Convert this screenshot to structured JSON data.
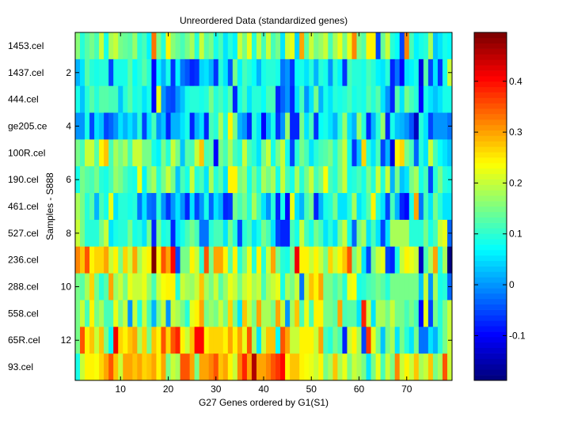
{
  "chart_data": {
    "type": "heatmap",
    "title": "Unreordered Data (standardized genes)",
    "xlabel": "G27 Genes ordered by G1(S1)",
    "ylabel": "Samples - S888",
    "row_labels": [
      "1453.cel",
      "1437.cel",
      "444.cel",
      "ge205.ce",
      "100R.cel",
      "190.cel",
      "461.cel",
      "527.cel",
      "236.cel",
      "288.cel",
      "558.cel",
      "65R.cel",
      "93.cel"
    ],
    "x_ticks": [
      10,
      20,
      30,
      40,
      50,
      60,
      70
    ],
    "y_ticks": [
      2,
      4,
      6,
      8,
      10,
      12
    ],
    "xlim": [
      0.5,
      79.5
    ],
    "ylim": [
      0.5,
      13.5
    ],
    "colormap": "jet",
    "clim": [
      -0.188,
      0.496
    ],
    "colorbar_ticks": [
      -0.1,
      0,
      0.1,
      0.2,
      0.3,
      0.4
    ],
    "colorbar_tick_labels": [
      "-0.1",
      "0",
      "0.1",
      "0.2",
      "0.3",
      "0.4"
    ],
    "values": [
      [
        0.16,
        0.1,
        0.13,
        0.15,
        0.12,
        0.2,
        0.08,
        0.18,
        0.2,
        0.15,
        0.14,
        0.13,
        0.17,
        0.1,
        0.12,
        0.06,
        0.33,
        0.15,
        0.1,
        0.25,
        0.16,
        0.14,
        0.12,
        0.15,
        0.18,
        0.1,
        0.2,
        0.13,
        0.15,
        0.08,
        0.12,
        0.05,
        0.1,
        0.06,
        0.2,
        0.15,
        0.22,
        0.1,
        0.19,
        0.12,
        0.2,
        0.12,
        0.15,
        0.05,
        0.2,
        0.22,
        0.04,
        0.3,
        0.13,
        0.2,
        0.15,
        0.17,
        0.2,
        0.12,
        0.18,
        0.22,
        0.15,
        0.22,
        0.32,
        0.15,
        0.13,
        0.24,
        0.24,
        -0.05,
        0.14,
        0.2,
        0.09,
        0.07,
        -0.05,
        0.32,
        0.12,
        0.06,
        0.08,
        0.1,
        0.18,
        0.03,
        0.05,
        0.08,
        0.07
      ],
      [
        0.02,
        0.05,
        0.13,
        0.1,
        0.08,
        0.1,
        0.1,
        -0.05,
        0.08,
        0.08,
        0.08,
        0.13,
        0.07,
        0.1,
        0.13,
        0.1,
        -0.1,
        0.06,
        0.02,
        0.08,
        -0.06,
        0.06,
        -0.02,
        -0.04,
        -0.08,
        -0.06,
        0.04,
        0.05,
        0.02,
        -0.07,
        0.09,
        0.05,
        -0.04,
        0.15,
        0.06,
        0.12,
        0.1,
        0.07,
        0.02,
        0.08,
        0.1,
        0.1,
        0.08,
        -0.02,
        0.0,
        -0.06,
        0.07,
        0.08,
        0.05,
        0.1,
        0.02,
        0.09,
        0.08,
        0.0,
        0.1,
        0.06,
        -0.07,
        0.12,
        0.1,
        0.09,
        0.08,
        0.12,
        0.1,
        0.06,
        0.05,
        0.09,
        -0.08,
        -0.02,
        -0.1,
        0.05,
        0.06,
        0.08,
        -0.12,
        0.13,
        -0.05,
        0.05,
        -0.07,
        0.08,
        0.2
      ],
      [
        0.08,
        0.03,
        0.1,
        0.13,
        0.1,
        0.13,
        0.13,
        0.12,
        0.12,
        0.03,
        0.1,
        0.13,
        0.08,
        0.1,
        0.05,
        0.08,
        -0.1,
        0.22,
        0.0,
        -0.04,
        -0.05,
        0.0,
        0.03,
        0.08,
        0.1,
        0.1,
        0.08,
        0.1,
        0.15,
        0.1,
        0.12,
        0.08,
        0.13,
        -0.08,
        0.08,
        0.12,
        0.05,
        0.1,
        0.1,
        0.07,
        0.12,
        0.12,
        -0.08,
        -0.03,
        0.0,
        -0.08,
        0.05,
        0.12,
        0.0,
        0.05,
        0.15,
        0.02,
        0.08,
        0.05,
        0.1,
        0.08,
        0.1,
        0.12,
        0.08,
        0.1,
        0.08,
        0.13,
        0.1,
        0.13,
        0.05,
        0.0,
        -0.08,
        0.13,
        0.05,
        0.15,
        0.12,
        0.1,
        -0.1,
        0.08,
        0.05,
        0.03,
        0.05,
        0.08,
        0.08
      ],
      [
        0.0,
        0.0,
        0.08,
        -0.05,
        0.05,
        0.03,
        -0.05,
        -0.03,
        0.0,
        0.05,
        0.02,
        0.05,
        0.02,
        0.1,
        -0.05,
        0.05,
        0.12,
        0.0,
        0.03,
        -0.08,
        0.02,
        0.02,
        0.05,
        0.08,
        -0.08,
        0.02,
        0.05,
        -0.08,
        0.12,
        0.1,
        0.18,
        0.1,
        0.25,
        0.15,
        0.02,
        0.0,
        -0.08,
        0.1,
        0.05,
        -0.1,
        0.02,
        0.08,
        -0.06,
        0.0,
        0.17,
        -0.08,
        -0.08,
        0.15,
        0.05,
        0.12,
        -0.06,
        0.07,
        0.08,
        0.05,
        0.02,
        0.1,
        0.17,
        0.05,
        0.02,
        0.17,
        0.1,
        -0.08,
        0.02,
        0.1,
        0.17,
        -0.08,
        0.08,
        0.03,
        0.02,
        0.0,
        -0.04,
        -0.14,
        0.1,
        0.05,
        -0.05,
        0.0,
        0.0,
        0.0,
        -0.02
      ],
      [
        0.15,
        0.12,
        0.2,
        0.2,
        0.13,
        0.25,
        0.28,
        0.12,
        0.18,
        0.15,
        0.18,
        0.12,
        0.2,
        0.2,
        0.15,
        0.15,
        0.08,
        0.06,
        0.15,
        0.1,
        0.2,
        0.15,
        0.03,
        0.13,
        0.12,
        0.2,
        0.28,
        0.12,
        0.13,
        -0.1,
        0.15,
        0.12,
        0.18,
        0.12,
        0.1,
        0.2,
        0.12,
        0.1,
        0.05,
        0.15,
        0.2,
        0.08,
        0.15,
        0.2,
        0.08,
        -0.05,
        0.1,
        0.15,
        0.12,
        0.05,
        0.1,
        0.12,
        0.13,
        0.15,
        0.1,
        0.15,
        0.2,
        0.08,
        -0.06,
        0.03,
        0.27,
        0.1,
        0.05,
        0.12,
        -0.05,
        0.02,
        -0.12,
        0.25,
        0.27,
        0.15,
        0.12,
        -0.03,
        0.1,
        0.05,
        0.2,
        0.12,
        0.07,
        0.05,
        0.03
      ],
      [
        0.08,
        0.15,
        0.13,
        0.12,
        0.15,
        0.1,
        0.08,
        0.12,
        0.17,
        0.15,
        0.12,
        0.1,
        0.08,
        0.22,
        0.06,
        0.15,
        0.18,
        0.1,
        0.15,
        0.2,
        0.15,
        0.03,
        0.12,
        0.08,
        0.2,
        0.1,
        0.12,
        0.05,
        0.18,
        0.1,
        0.13,
        0.05,
        0.24,
        0.25,
        0.15,
        0.17,
        0.08,
        0.15,
        0.1,
        0.18,
        0.15,
        0.18,
        0.08,
        0.2,
        0.12,
        0.08,
        0.18,
        0.1,
        0.15,
        0.2,
        0.12,
        0.15,
        0.23,
        0.12,
        0.1,
        0.15,
        0.2,
        0.08,
        0.1,
        0.12,
        0.08,
        0.15,
        0.1,
        0.2,
        0.1,
        0.2,
        0.02,
        0.15,
        0.03,
        0.05,
        0.15,
        0.18,
        0.08,
        0.12,
        -0.05,
        0.1,
        0.15,
        0.1,
        0.08
      ],
      [
        0.18,
        0.15,
        0.1,
        0.13,
        0.02,
        0.12,
        0.08,
        0.22,
        0.05,
        0.1,
        0.1,
        0.08,
        0.1,
        -0.02,
        0.05,
        -0.02,
        -0.03,
        0.1,
        0.0,
        -0.06,
        0.0,
        0.05,
        0.0,
        -0.08,
        0.05,
        -0.05,
        0.0,
        0.08,
        -0.03,
        0.05,
        0.02,
        -0.08,
        -0.06,
        0.15,
        0.12,
        0.15,
        0.1,
        0.18,
        0.12,
        0.05,
        0.0,
        0.1,
        -0.08,
        0.08,
        -0.1,
        0.22,
        0.05,
        0.02,
        0.12,
        0.15,
        -0.08,
        0.02,
        0.08,
        0.1,
        0.15,
        0.05,
        0.05,
        0.1,
        0.18,
        0.05,
        0.08,
        0.13,
        0.25,
        0.1,
        0.05,
        -0.05,
        0.12,
        0.02,
        -0.08,
        -0.1,
        0.08,
        0.3,
        -0.02,
        0.12,
        0.05,
        0.15,
        0.1,
        0.05,
        0.05
      ],
      [
        0.2,
        0.15,
        0.1,
        0.1,
        0.1,
        0.15,
        0.2,
        0.05,
        0.08,
        0.1,
        0.1,
        0.15,
        0.08,
        0.1,
        0.05,
        0.15,
        -0.08,
        0.15,
        0.08,
        0.1,
        -0.08,
        0.05,
        0.08,
        0.12,
        0.15,
        0.12,
        -0.02,
        -0.02,
        0.1,
        0.12,
        0.12,
        0.05,
        0.15,
        0.1,
        -0.05,
        0.1,
        0.12,
        0.05,
        0.08,
        0.15,
        0.12,
        0.05,
        -0.05,
        -0.08,
        -0.08,
        0.12,
        0.08,
        0.2,
        0.12,
        0.08,
        0.15,
        0.12,
        0.05,
        0.1,
        0.05,
        0.15,
        0.2,
        0.08,
        -0.03,
        0.15,
        0.18,
        0.05,
        0.12,
        0.05,
        -0.05,
        0.05,
        0.18,
        0.18,
        0.18,
        0.18,
        0.1,
        0.1,
        0.1,
        0.15,
        0.08,
        0.12,
        0.2,
        0.22,
        -0.03
      ],
      [
        0.32,
        0.28,
        0.35,
        0.25,
        0.27,
        0.27,
        0.3,
        0.2,
        0.25,
        0.15,
        0.27,
        0.2,
        0.3,
        0.18,
        0.22,
        0.25,
        0.49,
        0.25,
        0.35,
        0.3,
        0.4,
        -0.05,
        0.15,
        0.15,
        0.25,
        0.2,
        0.1,
        0.35,
        0.15,
        0.3,
        0.3,
        0.25,
        0.13,
        0.25,
        0.1,
        0.15,
        0.22,
        0.1,
        0.25,
        0.1,
        0.2,
        0.3,
        0.15,
        0.1,
        0.08,
        0.15,
        0.42,
        0.25,
        0.25,
        0.2,
        0.25,
        0.2,
        0.15,
        0.27,
        0.2,
        0.25,
        0.28,
        0.35,
        0.15,
        0.2,
        0.05,
        -0.05,
        0.15,
        0.2,
        0.22,
        -0.05,
        -0.08,
        0.08,
        0.2,
        0.25,
        0.22,
        0.2,
        -0.14,
        0.12,
        0.18,
        0.3,
        0.1,
        0.18,
        -0.18
      ],
      [
        0.15,
        0.13,
        0.18,
        0.27,
        0.15,
        0.1,
        0.13,
        0.3,
        0.17,
        0.2,
        0.15,
        0.22,
        0.2,
        0.2,
        0.22,
        0.17,
        0.12,
        0.2,
        0.23,
        0.25,
        0.25,
        0.1,
        0.2,
        0.18,
        0.17,
        0.2,
        0.28,
        0.18,
        0.15,
        0.2,
        0.13,
        0.17,
        0.22,
        0.2,
        0.15,
        0.2,
        0.22,
        0.18,
        0.2,
        0.12,
        0.18,
        0.2,
        0.22,
        0.08,
        0.18,
        0.15,
        0.2,
        -0.02,
        0.2,
        0.28,
        0.25,
        0.3,
        0.15,
        0.15,
        0.12,
        0.15,
        0.1,
        0.22,
        0.23,
        0.08,
        0.1,
        0.12,
        0.13,
        0.15,
        0.13,
        0.1,
        0.15,
        0.15,
        0.15,
        0.15,
        0.15,
        0.15,
        0.03,
        0.2,
        0.0,
        0.18,
        0.08,
        0.1,
        -0.03
      ],
      [
        0.15,
        0.2,
        0.12,
        0.25,
        0.15,
        0.18,
        0.12,
        0.12,
        0.22,
        0.15,
        0.2,
        0.0,
        0.2,
        0.1,
        0.2,
        0.12,
        0.02,
        0.15,
        0.2,
        0.0,
        0.2,
        0.18,
        0.15,
        0.1,
        0.22,
        0.25,
        0.3,
        0.15,
        0.17,
        0.15,
        0.2,
        0.15,
        0.27,
        0.15,
        0.05,
        0.28,
        0.2,
        0.15,
        0.3,
        0.18,
        0.18,
        0.15,
        0.3,
        0.2,
        0.0,
        0.18,
        0.28,
        0.12,
        0.22,
        0.12,
        0.25,
        0.25,
        0.15,
        0.15,
        0.13,
        0.3,
        0.12,
        0.13,
        0.13,
        0.05,
        0.38,
        0.2,
        0.05,
        0.18,
        0.18,
        0.15,
        0.2,
        0.15,
        0.15,
        0.12,
        0.15,
        0.12,
        -0.1,
        0.22,
        -0.05,
        0.15,
        0.1,
        0.15,
        0.2
      ],
      [
        0.15,
        0.35,
        0.25,
        0.28,
        0.2,
        0.28,
        0.15,
        0.06,
        0.42,
        0.27,
        0.25,
        0.28,
        0.3,
        0.18,
        0.27,
        0.15,
        0.28,
        0.25,
        0.35,
        0.27,
        0.35,
        0.38,
        0.25,
        0.2,
        0.28,
        0.4,
        0.4,
        0.25,
        0.27,
        0.27,
        0.27,
        0.25,
        0.3,
        0.25,
        0.3,
        0.22,
        0.35,
        0.18,
        0.05,
        0.2,
        0.28,
        0.28,
        0.07,
        0.35,
        0.3,
        0.2,
        0.2,
        0.25,
        0.25,
        0.25,
        0.2,
        0.3,
        0.12,
        0.1,
        0.15,
        0.12,
        -0.08,
        0.2,
        0.25,
        0.18,
        -0.05,
        0.37,
        0.22,
        0.15,
        0.03,
        0.15,
        0.18,
        0.05,
        0.15,
        0.1,
        0.05,
        0.15,
        -0.02,
        -0.02,
        0.05,
        0.02,
        0.1,
        0.15,
        0.2
      ],
      [
        0.08,
        0.2,
        0.25,
        0.25,
        0.23,
        0.27,
        0.3,
        0.35,
        0.28,
        0.2,
        0.3,
        0.3,
        0.28,
        0.3,
        0.27,
        0.28,
        0.3,
        0.25,
        0.3,
        0.15,
        0.2,
        0.18,
        0.35,
        0.35,
        0.3,
        0.15,
        0.3,
        0.3,
        0.32,
        0.35,
        0.28,
        0.3,
        0.25,
        0.2,
        0.32,
        0.38,
        0.3,
        0.46,
        0.3,
        0.3,
        0.32,
        0.35,
        0.37,
        0.4,
        0.24,
        0.28,
        0.28,
        0.25,
        0.23,
        0.22,
        0.2,
        0.25,
        0.15,
        0.18,
        0.28,
        0.18,
        0.22,
        0.15,
        0.2,
        0.18,
        0.15,
        0.05,
        0.15,
        0.22,
        0.12,
        0.2,
        0.15,
        0.32,
        0.2,
        0.25,
        0.2,
        0.28,
        0.18,
        0.2,
        0.28,
        0.15,
        0.18,
        0.35,
        0.2
      ]
    ]
  }
}
